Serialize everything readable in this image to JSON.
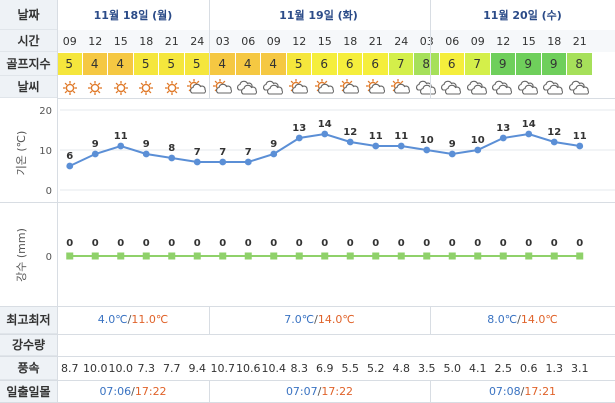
{
  "labels": {
    "date": "날짜",
    "time": "시간",
    "golf_index": "골프지수",
    "weather": "날씨",
    "temp_axis": "기온 (℃)",
    "rain_axis": "강수 (mm)",
    "minmax": "최고최저",
    "precip": "강수량",
    "wind": "풍속",
    "sun": "일출일몰"
  },
  "days": [
    {
      "label": "11월 18일 (월)",
      "min": "4.0℃",
      "max": "11.0℃",
      "sunrise": "07:06",
      "sunset": "17:22"
    },
    {
      "label": "11월 19일 (화)",
      "min": "7.0℃",
      "max": "14.0℃",
      "sunrise": "07:07",
      "sunset": "17:22"
    },
    {
      "label": "11월 20일 (수)",
      "min": "8.0℃",
      "max": "14.0℃",
      "sunrise": "07:08",
      "sunset": "17:21"
    }
  ],
  "hours": [
    "09",
    "12",
    "15",
    "18",
    "21",
    "24",
    "03",
    "06",
    "09",
    "12",
    "15",
    "18",
    "21",
    "24",
    "03",
    "06",
    "09",
    "12",
    "15",
    "18",
    "21"
  ],
  "golf_index": [
    5,
    4,
    4,
    5,
    5,
    5,
    4,
    4,
    4,
    5,
    6,
    6,
    6,
    7,
    8,
    6,
    7,
    9,
    9,
    9,
    8
  ],
  "golf_colors": {
    "4": "#f5c842",
    "5": "#f5e63c",
    "6": "#f5ee3c",
    "7": "#d4ef4a",
    "8": "#a6e05a",
    "9": "#6fcf5b"
  },
  "weather": [
    "sun",
    "sun",
    "sun",
    "sun",
    "sun",
    "partly",
    "partly",
    "cloudy",
    "cloudy",
    "partly",
    "partly",
    "partly",
    "partly",
    "partly",
    "cloudy",
    "cloudy",
    "cloudy",
    "cloudy",
    "cloudy",
    "cloudy",
    "cloudy"
  ],
  "wind": [
    "8.7",
    "10.0",
    "10.0",
    "7.3",
    "7.7",
    "9.4",
    "10.7",
    "10.6",
    "10.4",
    "8.3",
    "6.9",
    "5.5",
    "5.2",
    "4.8",
    "3.5",
    "5.0",
    "4.1",
    "2.5",
    "0.6",
    "1.3",
    "3.1"
  ],
  "chart_data": [
    {
      "type": "line",
      "ylabel": "기온 (℃)",
      "ylim": [
        0,
        20
      ],
      "yticks": [
        0,
        10,
        20
      ],
      "x": [
        "09",
        "12",
        "15",
        "18",
        "21",
        "24",
        "03",
        "06",
        "09",
        "12",
        "15",
        "18",
        "21",
        "24",
        "03",
        "06",
        "09",
        "12",
        "15",
        "18",
        "21"
      ],
      "values": [
        6,
        9,
        11,
        9,
        8,
        7,
        7,
        7,
        9,
        13,
        14,
        12,
        11,
        11,
        10,
        9,
        10,
        13,
        14,
        12,
        11
      ],
      "color": "#5b8fd6",
      "grid": true
    },
    {
      "type": "line",
      "ylabel": "강수 (mm)",
      "yticks": [
        0
      ],
      "x": [
        "09",
        "12",
        "15",
        "18",
        "21",
        "24",
        "03",
        "06",
        "09",
        "12",
        "15",
        "18",
        "21",
        "24",
        "03",
        "06",
        "09",
        "12",
        "15",
        "18",
        "21"
      ],
      "values": [
        0,
        0,
        0,
        0,
        0,
        0,
        0,
        0,
        0,
        0,
        0,
        0,
        0,
        0,
        0,
        0,
        0,
        0,
        0,
        0,
        0
      ],
      "color": "#8fd16a"
    }
  ]
}
